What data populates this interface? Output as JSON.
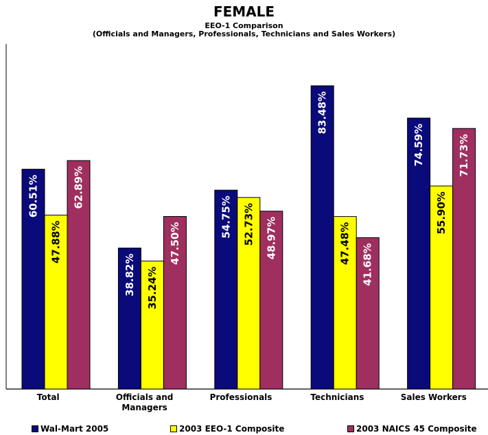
{
  "chart_data": {
    "type": "bar",
    "title": "FEMALE",
    "subtitle": "EEO-1 Comparison",
    "subtitle2": "(Officials and Managers, Professionals, Technicians and Sales Workers)",
    "categories": [
      "Total",
      "Officials and Managers",
      "Professionals",
      "Technicians",
      "Sales Workers"
    ],
    "category_lines": [
      [
        "Total"
      ],
      [
        "Officials and",
        "Managers"
      ],
      [
        "Professionals"
      ],
      [
        "Technicians"
      ],
      [
        "Sales Workers"
      ]
    ],
    "series": [
      {
        "name": "Wal-Mart 2005",
        "color": "#0a0a7a",
        "label_color": "#ffffff",
        "values": [
          60.51,
          38.82,
          54.75,
          83.48,
          74.59
        ],
        "labels": [
          "60.51%",
          "38.82%",
          "54.75%",
          "83.48%",
          "74.59%"
        ]
      },
      {
        "name": "2003 EEO-1 Composite",
        "color": "#ffff00",
        "label_color": "#000000",
        "values": [
          47.88,
          35.24,
          52.73,
          47.48,
          55.9
        ],
        "labels": [
          "47.88%",
          "35.24%",
          "52.73%",
          "47.48%",
          "55.90%"
        ]
      },
      {
        "name": "2003 NAICS 45 Composite",
        "color": "#9e2f5e",
        "label_color": "#ffffff",
        "values": [
          62.89,
          47.5,
          48.97,
          41.68,
          71.73
        ],
        "labels": [
          "62.89%",
          "47.50%",
          "48.97%",
          "41.68%",
          "71.73%"
        ]
      }
    ],
    "ylim": [
      0,
      95
    ],
    "grid": false,
    "legend_position": "bottom"
  }
}
